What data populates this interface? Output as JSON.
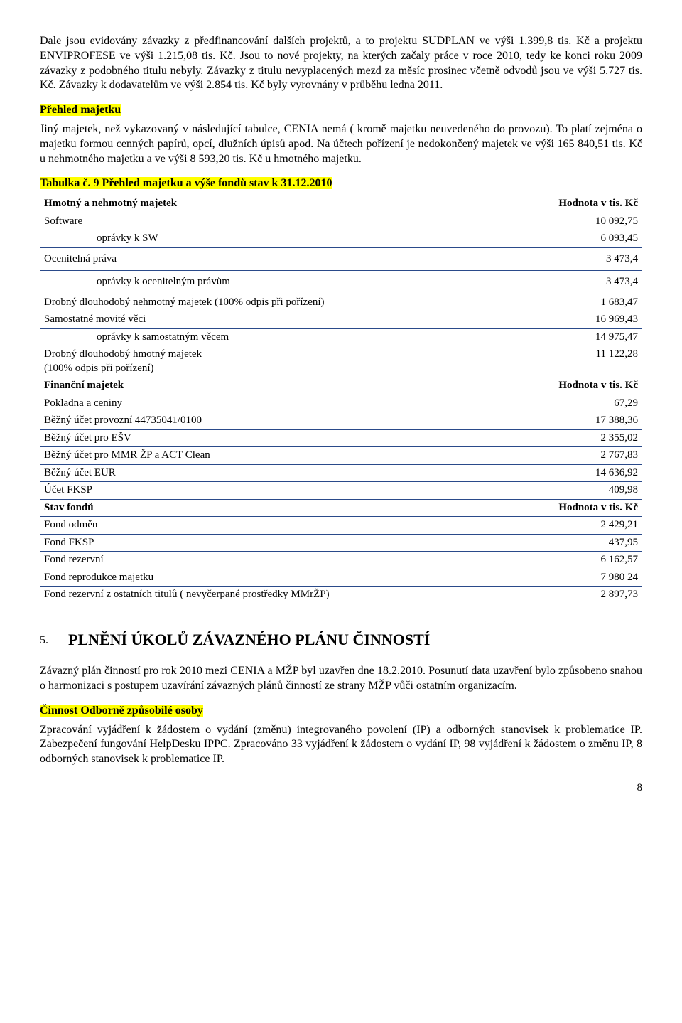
{
  "para1": "Dale jsou evidovány závazky z předfinancování dalších projektů, a to projektu SUDPLAN ve výši 1.399,8 tis. Kč a projektu ENVIPROFESE ve výši 1.215,08 tis. Kč. Jsou to nové projekty, na kterých začaly práce v roce 2010, tedy ke konci roku 2009 závazky z podobného titulu nebyly. Závazky z titulu nevyplacených mezd za měsíc prosinec včetně odvodů jsou ve výši 5.727 tis. Kč. Závazky k dodavatelům ve výši 2.854 tis. Kč byly vyrovnány v průběhu ledna 2011.",
  "h_prehled": "Přehled  majetku",
  "para2": "Jiný majetek, než  vykazovaný v následující tabulce, CENIA  nemá ( kromě majetku neuvedeného do provozu). To platí zejména o majetku formou cenných papírů, opcí, dlužních úpisů apod. Na účtech pořízení je nedokončený majetek ve výši 165 840,51 tis. Kč u nehmotného majetku a ve výši 8 593,20 tis. Kč u hmotného majetku.",
  "table_title": "Tabulka č. 9  Přehled majetku a výše fondů stav k 31.12.2010",
  "table": {
    "header1": {
      "label": "Hmotný a nehmotný majetek",
      "val": "Hodnota v tis. Kč"
    },
    "rows1": [
      {
        "label": "Software",
        "val": "10 092,75",
        "indent": false
      },
      {
        "label": "oprávky k SW",
        "val": "6 093,45",
        "indent": true
      },
      {
        "label": "Ocenitelná práva",
        "val": "3 473,4",
        "indent": false
      },
      {
        "label": "oprávky k ocenitelným právům",
        "val": "3 473,4",
        "indent": true
      },
      {
        "label": "Drobný dlouhodobý nehmotný majetek  (100% odpis při pořízení)",
        "val": "1 683,47",
        "indent": false
      },
      {
        "label": "Samostatné movité věci",
        "val": "16 969,43",
        "indent": false
      },
      {
        "label": "oprávky k samostatným věcem",
        "val": "14 975,47",
        "indent": true
      },
      {
        "label": "Drobný dlouhodobý hmotný majetek\n(100% odpis při pořízení)",
        "val": "11 122,28",
        "indent": false
      }
    ],
    "header2": {
      "label": "Finanční majetek",
      "val": "Hodnota v tis. Kč"
    },
    "rows2": [
      {
        "label": "Pokladna a ceniny",
        "val": "67,29"
      },
      {
        "label": "Běžný účet provozní 44735041/0100",
        "val": "17 388,36"
      },
      {
        "label": "Běžný účet pro  EŠV",
        "val": "2 355,02"
      },
      {
        "label": "Běžný účet  pro MMR ŽP a ACT Clean",
        "val": "2 767,83"
      },
      {
        "label": "Běžný účet EUR",
        "val": "14 636,92"
      },
      {
        "label": "Účet FKSP",
        "val": "409,98"
      }
    ],
    "header3": {
      "label": "Stav fondů",
      "val": "Hodnota v tis. Kč"
    },
    "rows3": [
      {
        "label": "Fond odměn",
        "val": "2 429,21"
      },
      {
        "label": "Fond  FKSP",
        "val": "437,95"
      },
      {
        "label": "Fond rezervní",
        "val": "6 162,57"
      },
      {
        "label": "Fond reprodukce majetku",
        "val": "7 980 24"
      },
      {
        "label": "Fond rezervní z ostatních titulů ( nevyčerpané prostředky MMrŽP)",
        "val": "2 897,73"
      }
    ]
  },
  "sec5_num": "5.",
  "sec5_title": "PLNĚNÍ ÚKOLŮ ZÁVAZNÉHO PLÁNU ČINNOSTÍ",
  "para3": "Závazný plán činností pro rok 2010 mezi CENIA a MŽP byl uzavřen dne 18.2.2010. Posunutí data uzavření bylo způsobeno snahou o harmonizaci s postupem uzavírání závazných plánů činností ze strany MŽP vůči ostatním organizacím.",
  "h_cinnost": "Činnost Odborně způsobilé osoby",
  "para4": "Zpracování vyjádření k žádostem o vydání (změnu) integrovaného povolení (IP) a odborných stanovisek k problematice IP. Zabezpečení fungování HelpDesku IPPC. Zpracováno 33 vyjádření k žádostem o vydání IP, 98 vyjádření k žádostem o změnu IP, 8 odborných stanovisek k problematice IP.",
  "page": "8"
}
